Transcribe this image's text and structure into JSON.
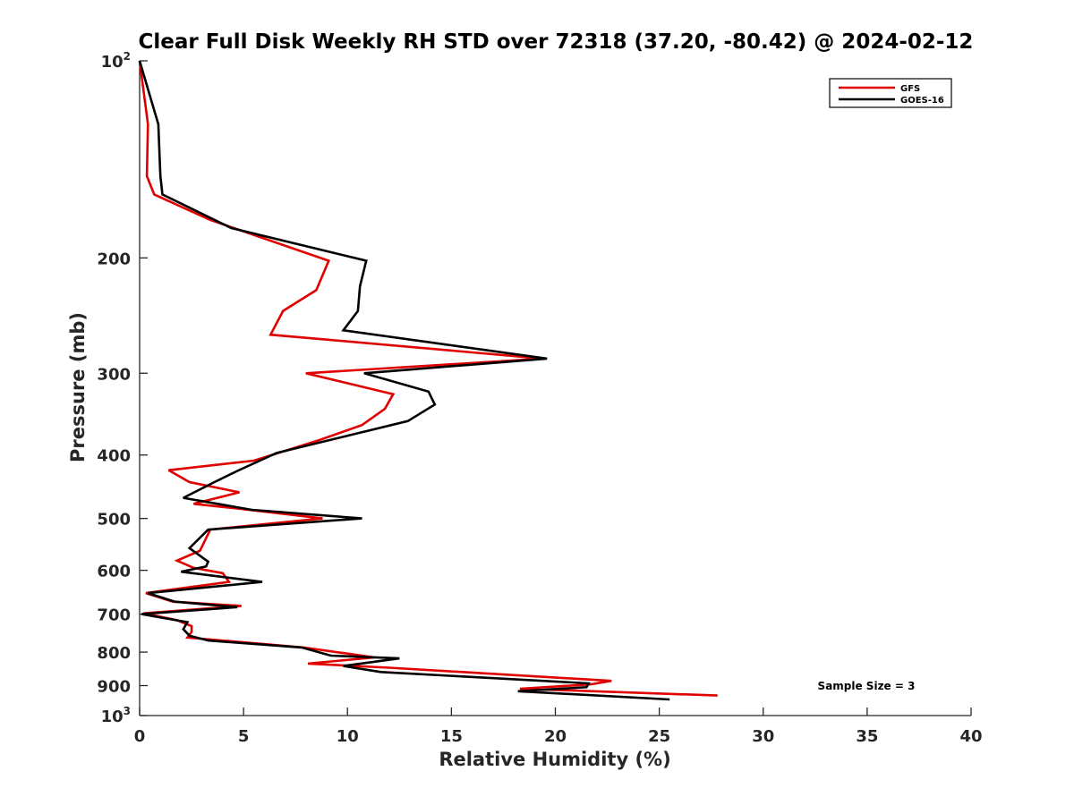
{
  "chart_data": {
    "type": "line",
    "title": "Clear Full Disk Weekly RH STD over 72318 (37.20, -80.42) @ 2024-02-12",
    "xlabel": "Relative Humidity (%)",
    "ylabel": "Pressure (mb)",
    "xlim": [
      0,
      40
    ],
    "ylim": [
      100,
      1000
    ],
    "yscale": "log",
    "yreversed": true,
    "x_ticks": [
      "0",
      "5",
      "10",
      "15",
      "20",
      "25",
      "30",
      "35",
      "40"
    ],
    "y_ticks": [
      {
        "base": "10",
        "exp": "2",
        "value": 100
      },
      {
        "base": "200",
        "exp": "",
        "value": 200
      },
      {
        "base": "300",
        "exp": "",
        "value": 300
      },
      {
        "base": "400",
        "exp": "",
        "value": 400
      },
      {
        "base": "500",
        "exp": "",
        "value": 500
      },
      {
        "base": "600",
        "exp": "",
        "value": 600
      },
      {
        "base": "700",
        "exp": "",
        "value": 700
      },
      {
        "base": "800",
        "exp": "",
        "value": 800
      },
      {
        "base": "900",
        "exp": "",
        "value": 900
      },
      {
        "base": "10",
        "exp": "3",
        "value": 1000
      }
    ],
    "grid": false,
    "legend_position": "top-right",
    "series": [
      {
        "name": "GFS",
        "color": "#e00000",
        "points": [
          [
            0.0,
            100
          ],
          [
            0.4,
            125
          ],
          [
            0.35,
            150
          ],
          [
            0.7,
            160
          ],
          [
            3.4,
            175
          ],
          [
            9.1,
            202
          ],
          [
            8.5,
            224
          ],
          [
            6.9,
            241
          ],
          [
            6.3,
            262
          ],
          [
            19.4,
            285
          ],
          [
            8.0,
            300
          ],
          [
            12.2,
            323
          ],
          [
            11.8,
            340
          ],
          [
            10.7,
            360
          ],
          [
            8.6,
            380
          ],
          [
            5.5,
            408
          ],
          [
            1.4,
            422
          ],
          [
            2.4,
            440
          ],
          [
            4.8,
            456
          ],
          [
            2.6,
            475
          ],
          [
            4.5,
            482
          ],
          [
            8.8,
            500
          ],
          [
            3.4,
            520
          ],
          [
            2.9,
            560
          ],
          [
            1.8,
            580
          ],
          [
            2.6,
            595
          ],
          [
            4.0,
            606
          ],
          [
            4.3,
            625
          ],
          [
            0.3,
            650
          ],
          [
            1.6,
            670
          ],
          [
            4.9,
            680
          ],
          [
            0.2,
            698
          ],
          [
            1.8,
            715
          ],
          [
            2.5,
            730
          ],
          [
            2.5,
            745
          ],
          [
            2.3,
            760
          ],
          [
            7.9,
            787
          ],
          [
            11.3,
            815
          ],
          [
            8.1,
            833
          ],
          [
            12.0,
            845
          ],
          [
            22.7,
            885
          ],
          [
            21.7,
            896
          ],
          [
            18.3,
            910
          ],
          [
            27.8,
            932
          ]
        ]
      },
      {
        "name": "GOES-16",
        "color": "#000000",
        "points": [
          [
            0.0,
            100
          ],
          [
            0.9,
            125
          ],
          [
            1.0,
            150
          ],
          [
            1.1,
            160
          ],
          [
            4.4,
            180
          ],
          [
            10.9,
            202
          ],
          [
            10.6,
            221
          ],
          [
            10.5,
            241
          ],
          [
            9.8,
            258
          ],
          [
            19.6,
            285
          ],
          [
            10.8,
            300
          ],
          [
            13.9,
            320
          ],
          [
            14.2,
            335
          ],
          [
            12.9,
            355
          ],
          [
            6.6,
            397
          ],
          [
            4.7,
            423
          ],
          [
            3.6,
            440
          ],
          [
            2.1,
            465
          ],
          [
            5.4,
            485
          ],
          [
            10.7,
            500
          ],
          [
            3.3,
            520
          ],
          [
            2.4,
            555
          ],
          [
            2.9,
            570
          ],
          [
            3.3,
            582
          ],
          [
            3.2,
            592
          ],
          [
            2.0,
            603
          ],
          [
            5.9,
            625
          ],
          [
            0.4,
            650
          ],
          [
            1.7,
            670
          ],
          [
            4.7,
            683
          ],
          [
            0.1,
            700
          ],
          [
            2.3,
            720
          ],
          [
            2.1,
            738
          ],
          [
            2.4,
            755
          ],
          [
            3.3,
            768
          ],
          [
            7.8,
            787
          ],
          [
            9.2,
            810
          ],
          [
            12.5,
            818
          ],
          [
            9.8,
            840
          ],
          [
            11.6,
            858
          ],
          [
            21.6,
            893
          ],
          [
            21.5,
            905
          ],
          [
            18.2,
            918
          ],
          [
            25.5,
            945
          ]
        ]
      }
    ],
    "annotations": [
      "Sample Size = 3"
    ]
  }
}
